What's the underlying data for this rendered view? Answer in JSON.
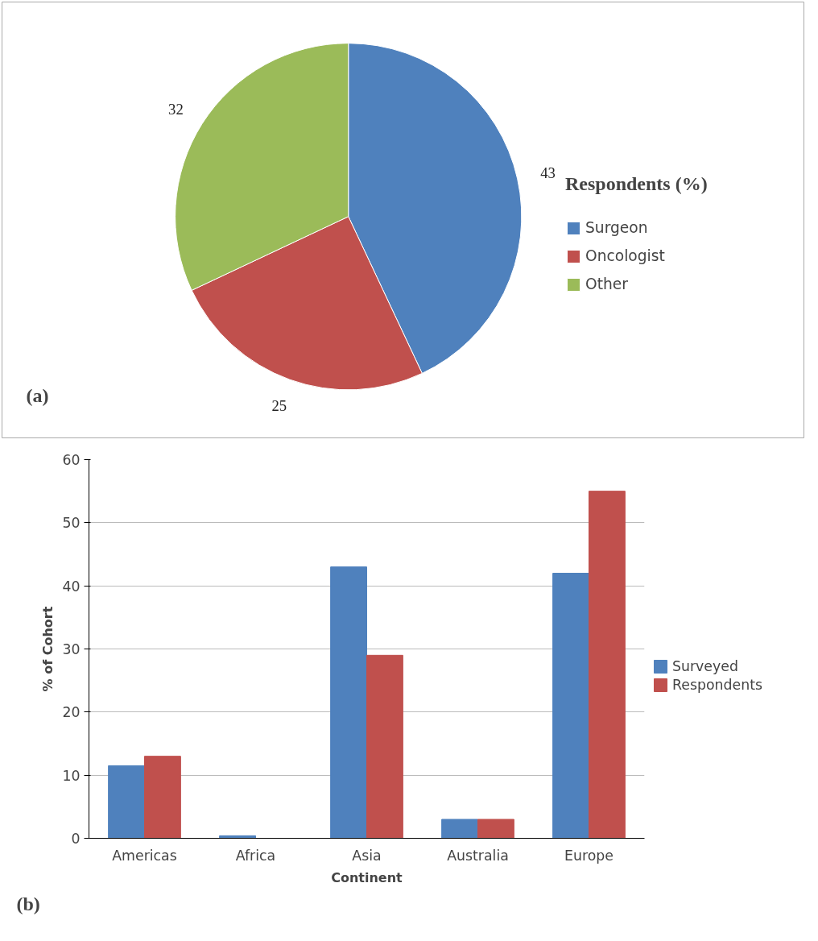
{
  "chart_data": [
    {
      "type": "pie",
      "categories": [
        "Surgeon",
        "Oncologist",
        "Other"
      ],
      "values": [
        43,
        25,
        32
      ],
      "colors": [
        "#4f81bd",
        "#c0504d",
        "#9bbb59"
      ],
      "legend_title": "Respondents (%)",
      "legend": "right",
      "data_labels": true,
      "annotations": [
        "(a)"
      ]
    },
    {
      "type": "bar",
      "categories": [
        "Americas",
        "Africa",
        "Asia",
        "Australia",
        "Europe"
      ],
      "xlabel": "Continent",
      "ylabel": "% of Cohort",
      "ylim": [
        0,
        60
      ],
      "yticks": [
        0,
        10,
        20,
        30,
        40,
        50,
        60
      ],
      "grid": "y",
      "legend": "right",
      "annotations": [
        "(b)"
      ],
      "series": [
        {
          "name": "Surveyed",
          "color": "#4f81bd",
          "values": [
            11.5,
            0.4,
            43,
            3,
            42
          ]
        },
        {
          "name": "Respondents",
          "color": "#c0504d",
          "values": [
            13,
            0,
            29,
            3,
            55
          ]
        }
      ]
    }
  ]
}
